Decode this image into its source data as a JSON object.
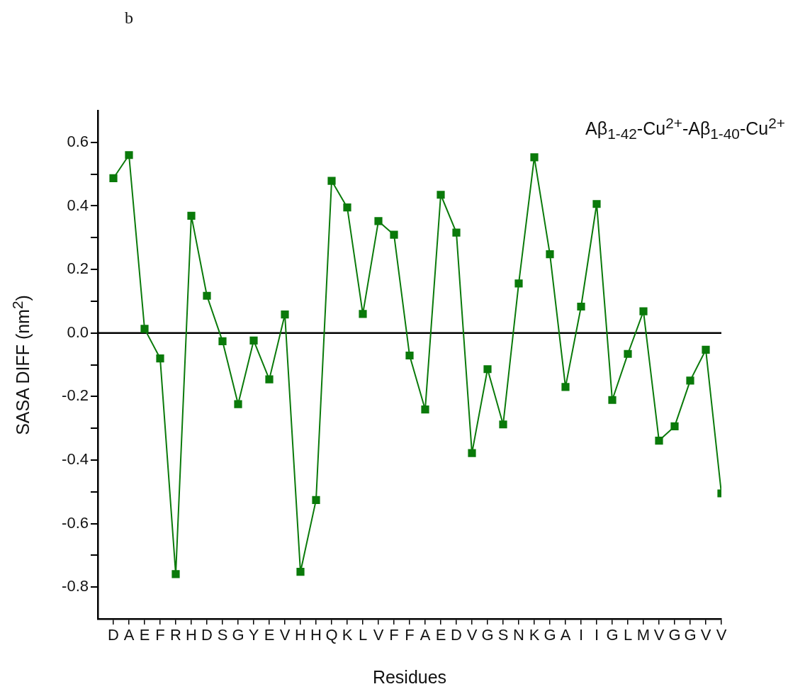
{
  "chart_data": {
    "type": "line",
    "title": "Aβ$_{1-42}$-Cu$^{2+}$-Aβ$_{1-40}$-Cu$^{2+}$",
    "xlabel": "Residues",
    "ylabel": "SASA DIFF (nm$^{2}$)",
    "annotations": [
      "b"
    ],
    "categories": [
      "D",
      "A",
      "E",
      "F",
      "R",
      "H",
      "D",
      "S",
      "G",
      "Y",
      "E",
      "V",
      "H",
      "H",
      "Q",
      "K",
      "L",
      "V",
      "F",
      "F",
      "A",
      "E",
      "D",
      "V",
      "G",
      "S",
      "N",
      "K",
      "G",
      "A",
      "I",
      "I",
      "G",
      "L",
      "M",
      "V",
      "G",
      "G",
      "V",
      "V"
    ],
    "series": [
      {
        "color": "#0a7a0a",
        "values": [
          0.487,
          0.56,
          0.013,
          -0.08,
          -0.759,
          0.369,
          0.117,
          -0.026,
          -0.224,
          -0.024,
          -0.146,
          0.058,
          -0.752,
          -0.526,
          0.479,
          0.395,
          0.06,
          0.352,
          0.309,
          -0.071,
          -0.241,
          0.435,
          0.316,
          -0.378,
          -0.114,
          -0.288,
          0.156,
          0.553,
          0.248,
          -0.17,
          0.083,
          0.406,
          -0.211,
          -0.066,
          0.068,
          -0.339,
          -0.294,
          -0.15,
          -0.053,
          -0.505
        ]
      }
    ],
    "ylim": [
      -0.9,
      0.7
    ],
    "yticks": [
      {
        "value": -0.8,
        "label": "-0.8"
      },
      {
        "value": -0.7,
        "label": null
      },
      {
        "value": -0.6,
        "label": "-0.6"
      },
      {
        "value": -0.5,
        "label": null
      },
      {
        "value": -0.4,
        "label": "-0.4"
      },
      {
        "value": -0.3,
        "label": null
      },
      {
        "value": -0.2,
        "label": "-0.2"
      },
      {
        "value": -0.1,
        "label": null
      },
      {
        "value": 0,
        "label": "0.0"
      },
      {
        "value": 0.1,
        "label": null
      },
      {
        "value": 0.2,
        "label": "0.2"
      },
      {
        "value": 0.3,
        "label": null
      },
      {
        "value": 0.4,
        "label": "0.4"
      },
      {
        "value": 0.5,
        "label": null
      },
      {
        "value": 0.6,
        "label": "0.6"
      }
    ],
    "ref_lines": [
      {
        "axis": "y",
        "value": 0,
        "color": "#000000"
      }
    ],
    "grid": false,
    "legend": false,
    "marker": "square",
    "line_style": "solid"
  }
}
